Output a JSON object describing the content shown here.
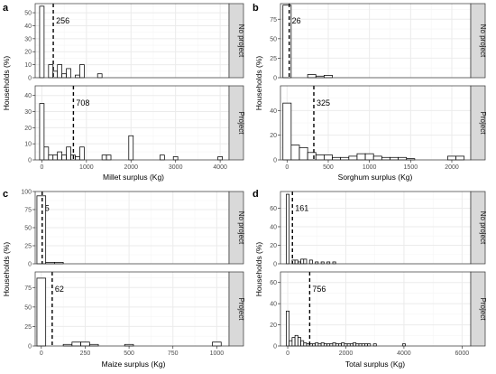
{
  "figure": {
    "width": 550,
    "height": 414
  },
  "chart_data": [
    {
      "type": "bar",
      "tag": "a",
      "xlabel": "Millet surplus (Kg)",
      "ylabel": "Households (%)",
      "xlim": [
        -150,
        4200
      ],
      "xticks": [
        0,
        1000,
        2000,
        3000,
        4000
      ],
      "binwidth": 100,
      "facets": [
        {
          "label": "No project",
          "ylim": [
            0,
            57
          ],
          "yticks": [
            0,
            10,
            20,
            30,
            40,
            50
          ],
          "mean": 256,
          "mean_label": "256",
          "x": [
            0,
            100,
            200,
            300,
            400,
            500,
            600,
            700,
            800,
            900,
            1000,
            1100,
            1200,
            1300
          ],
          "values": [
            55,
            0,
            10,
            5,
            10,
            3,
            7,
            0,
            2,
            10,
            0,
            0,
            0,
            3
          ]
        },
        {
          "label": "Project",
          "ylim": [
            0,
            46
          ],
          "yticks": [
            0,
            10,
            20,
            30,
            40
          ],
          "mean": 708,
          "mean_label": "708",
          "x": [
            0,
            100,
            200,
            300,
            400,
            500,
            600,
            700,
            800,
            900,
            1000,
            1100,
            1200,
            1300,
            1400,
            1500,
            1600,
            1700,
            1800,
            1900,
            2000,
            2100,
            2200,
            2300,
            2400,
            2500,
            2600,
            2700,
            2800,
            2900,
            3000,
            3100,
            3200,
            3300,
            3400,
            3500,
            3600,
            3700,
            3800,
            3900,
            4000
          ],
          "values": [
            35,
            8,
            3,
            3,
            5,
            3,
            8,
            3,
            2,
            8,
            0,
            0,
            0,
            0,
            3,
            3,
            0,
            0,
            0,
            0,
            15,
            0,
            0,
            0,
            0,
            0,
            0,
            3,
            0,
            0,
            2,
            0,
            0,
            0,
            0,
            0,
            0,
            0,
            0,
            0,
            2
          ]
        }
      ]
    },
    {
      "type": "bar",
      "tag": "b",
      "xlabel": "Sorghum surplus (Kg)",
      "ylabel": "Households (%)",
      "xlim": [
        -80,
        2230
      ],
      "xticks": [
        0,
        500,
        1000,
        1500,
        2000
      ],
      "binwidth": 100,
      "facets": [
        {
          "label": "No project",
          "ylim": [
            0,
            95
          ],
          "yticks": [
            0,
            25,
            50,
            75
          ],
          "mean": 26,
          "mean_label": "26",
          "x": [
            0,
            100,
            200,
            300,
            400,
            500,
            600
          ],
          "values": [
            93,
            0,
            0,
            4,
            2,
            3,
            0
          ]
        },
        {
          "label": "Project",
          "ylim": [
            0,
            60
          ],
          "yticks": [
            0,
            20,
            40
          ],
          "mean": 325,
          "mean_label": "325",
          "x": [
            0,
            100,
            200,
            300,
            400,
            500,
            600,
            700,
            800,
            900,
            1000,
            1100,
            1200,
            1300,
            1400,
            1500,
            1600,
            1700,
            1800,
            1900,
            2000,
            2100
          ],
          "values": [
            46,
            12,
            10,
            6,
            4,
            4,
            2,
            2,
            3,
            5,
            5,
            3,
            2,
            2,
            2,
            1,
            0,
            0,
            0,
            0,
            3,
            3
          ]
        }
      ]
    },
    {
      "type": "bar",
      "tag": "c",
      "xlabel": "Maize surplus (Kg)",
      "ylabel": "Households (%)",
      "xlim": [
        -35,
        1070
      ],
      "xticks": [
        0,
        250,
        500,
        750,
        1000
      ],
      "binwidth": 50,
      "facets": [
        {
          "label": "No project",
          "ylim": [
            0,
            100
          ],
          "yticks": [
            0,
            25,
            50,
            75,
            100
          ],
          "mean": 5,
          "mean_label": "5",
          "x": [
            0,
            50,
            100,
            150
          ],
          "values": [
            94,
            2,
            2,
            0
          ]
        },
        {
          "label": "Project",
          "ylim": [
            0,
            95
          ],
          "yticks": [
            0,
            25,
            50,
            75
          ],
          "mean": 62,
          "mean_label": "62",
          "x": [
            0,
            50,
            100,
            150,
            200,
            250,
            300,
            350,
            400,
            450,
            500,
            550,
            600,
            650,
            700,
            750,
            800,
            850,
            900,
            950,
            1000,
            1050
          ],
          "values": [
            87,
            0,
            0,
            2,
            5,
            5,
            2,
            0,
            0,
            0,
            2,
            0,
            0,
            0,
            0,
            0,
            0,
            0,
            0,
            0,
            5,
            0
          ]
        }
      ]
    },
    {
      "type": "bar",
      "tag": "d",
      "xlabel": "Total surplus (Kg)",
      "ylabel": "Households (%)",
      "xlim": [
        -250,
        6300
      ],
      "xticks": [
        0,
        2000,
        4000,
        6000
      ],
      "binwidth": 100,
      "facets": [
        {
          "label": "No project",
          "ylim": [
            0,
            78
          ],
          "yticks": [
            0,
            20,
            40,
            60
          ],
          "mean": 161,
          "mean_label": "161",
          "x": [
            0,
            100,
            200,
            300,
            400,
            500,
            600,
            700,
            800,
            900,
            1000,
            1100,
            1200,
            1300,
            1400,
            1500,
            1600
          ],
          "values": [
            75,
            0,
            4,
            4,
            2,
            5,
            5,
            0,
            4,
            0,
            2,
            0,
            2,
            0,
            2,
            0,
            2
          ]
        },
        {
          "label": "Project",
          "ylim": [
            0,
            70
          ],
          "yticks": [
            0,
            20,
            40,
            60
          ],
          "mean": 756,
          "mean_label": "756",
          "x": [
            0,
            100,
            200,
            300,
            400,
            500,
            600,
            700,
            800,
            900,
            1000,
            1100,
            1200,
            1300,
            1400,
            1500,
            1600,
            1700,
            1800,
            1900,
            2000,
            2100,
            2200,
            2300,
            2400,
            2500,
            2600,
            2700,
            2800,
            2900,
            3000,
            3100,
            3200,
            3300,
            3400,
            3500,
            3600,
            3700,
            3800,
            3900,
            4000
          ],
          "values": [
            33,
            5,
            8,
            10,
            8,
            5,
            3,
            2,
            2,
            2,
            3,
            2,
            3,
            2,
            2,
            2,
            3,
            2,
            2,
            3,
            2,
            2,
            2,
            3,
            2,
            2,
            2,
            2,
            2,
            0,
            2,
            0,
            0,
            0,
            0,
            0,
            0,
            0,
            0,
            0,
            2
          ]
        }
      ]
    }
  ]
}
